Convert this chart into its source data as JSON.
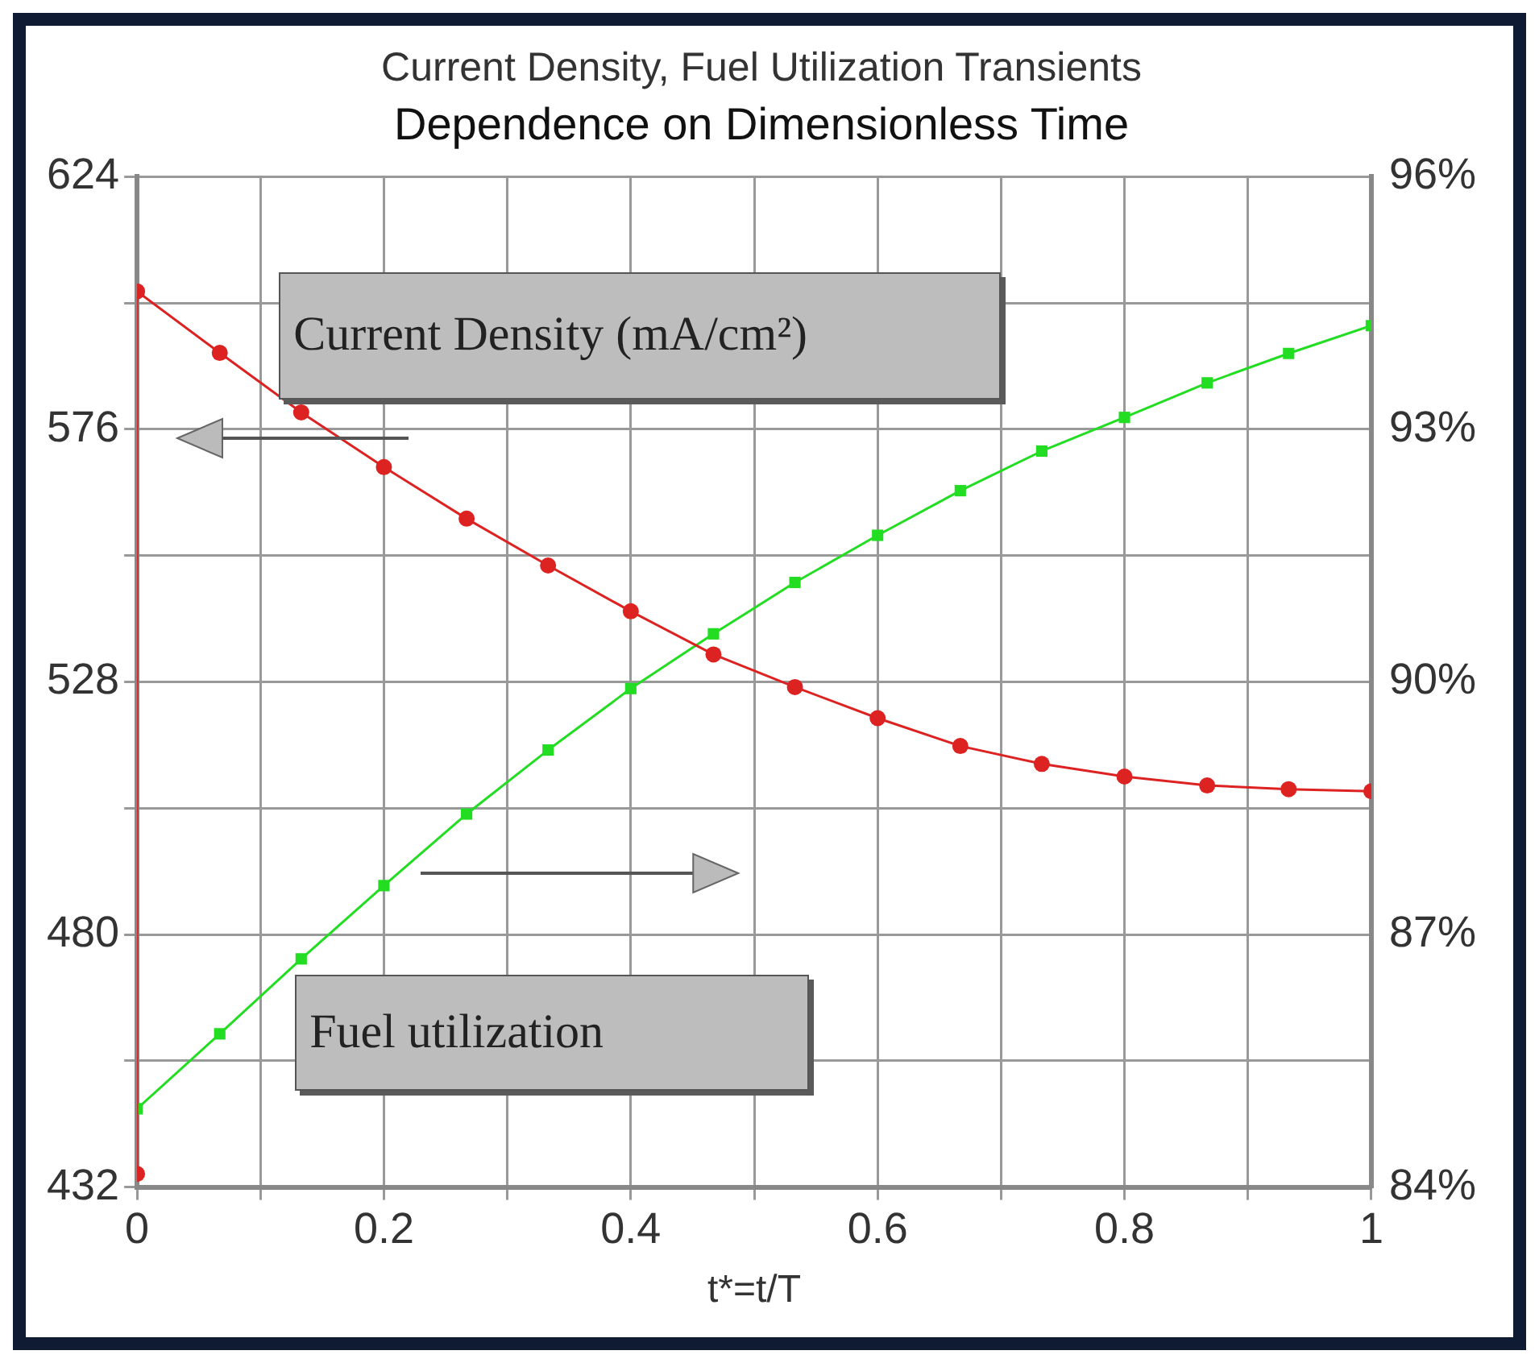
{
  "chart_data": {
    "type": "line",
    "title": "Current Density, Fuel Utilization Transients",
    "subtitle": "Dependence on Dimensionless Time",
    "xlabel": "t*=t/T",
    "x": [
      0,
      0.067,
      0.133,
      0.2,
      0.267,
      0.333,
      0.4,
      0.467,
      0.533,
      0.6,
      0.667,
      0.733,
      0.8,
      0.867,
      0.933,
      1
    ],
    "series": [
      {
        "name": "Current Density (mA/cm²)",
        "color": "#dd2222",
        "marker": "circle",
        "x": [
          0,
          0,
          0.067,
          0.133,
          0.2,
          0.267,
          0.333,
          0.4,
          0.467,
          0.533,
          0.6,
          0.667,
          0.733,
          0.8,
          0.867,
          0.933,
          1
        ],
        "values": [
          434.5,
          602.2,
          590.5,
          579.2,
          568.8,
          559.0,
          550.1,
          541.4,
          533.2,
          527.0,
          521.1,
          515.8,
          512.4,
          510.0,
          508.3,
          507.6,
          507.2
        ]
      },
      {
        "name": "Fuel utilization",
        "color": "#22dd22",
        "marker": "square",
        "axis": "y2",
        "values": [
          84.93,
          85.82,
          86.71,
          87.58,
          88.43,
          89.19,
          89.92,
          90.57,
          91.18,
          91.74,
          92.27,
          92.74,
          93.14,
          93.55,
          93.9,
          94.23
        ]
      }
    ],
    "xlim": [
      0,
      1
    ],
    "xticks": [
      0,
      {
        "value": 0.1,
        "label": null
      },
      0.2,
      {
        "value": 0.3,
        "label": null
      },
      0.4,
      {
        "value": 0.5,
        "label": null
      },
      0.6,
      {
        "value": 0.7,
        "label": null
      },
      0.8,
      {
        "value": 0.9,
        "label": null
      },
      1
    ],
    "ylim": [
      432,
      624
    ],
    "yticks": [
      432,
      {
        "value": 456,
        "label": null
      },
      480,
      {
        "value": 504,
        "label": null
      },
      528,
      {
        "value": 552,
        "label": null
      },
      576,
      {
        "value": 600,
        "label": null
      },
      624
    ],
    "y2lim": [
      84,
      96
    ],
    "y2ticks": [
      {
        "value": 84,
        "label": "84%"
      },
      {
        "value": 87,
        "label": "87%"
      },
      {
        "value": 90,
        "label": "90%"
      },
      {
        "value": 93,
        "label": "93%"
      },
      {
        "value": 96,
        "label": "96%"
      }
    ],
    "grid": true,
    "legend": false
  }
}
